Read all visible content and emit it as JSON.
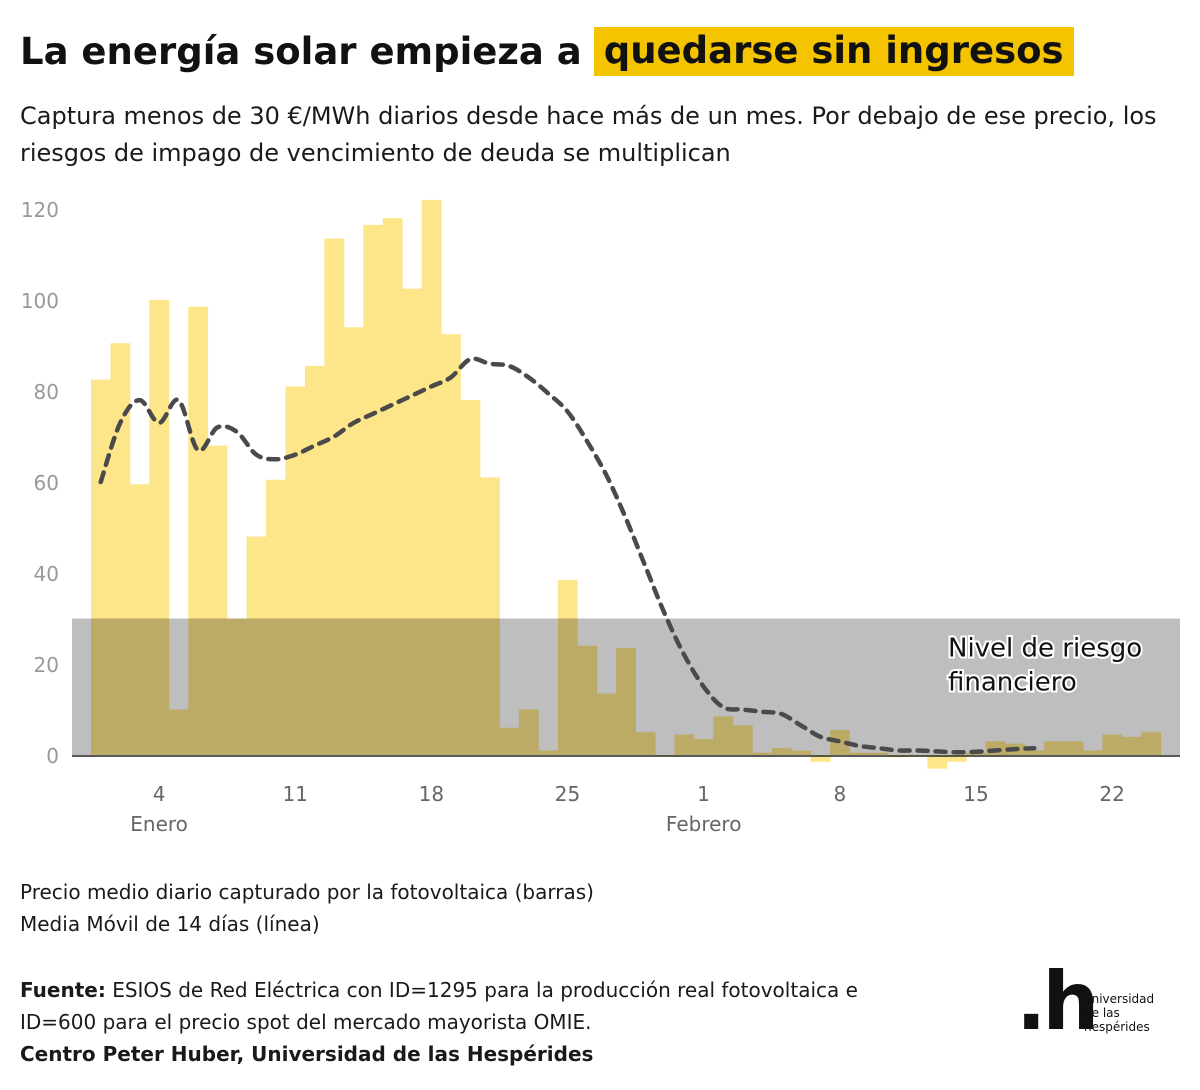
{
  "title": {
    "main": "La energía solar empieza a",
    "highlight": "quedarse sin ingresos"
  },
  "subtitle": "Captura menos de 30 €/MWh diarios desde hace más de un mes. Por debajo de ese precio, los riesgos de impago de vencimiento de deuda se multiplican",
  "legend": {
    "bars": "Precio medio diario capturado por la fotovoltaica (barras)",
    "line": "Media Móvil de 14 días (línea)"
  },
  "source": {
    "label": "Fuente:",
    "text": "ESIOS de Red Eléctrica con ID=1295 para la producción real fotovoltaica e ID=600 para el precio spot del mercado mayorista OMIE.",
    "credit": "Centro Peter Huber, Universidad de las Hespérides"
  },
  "logo": {
    "mark": ".h",
    "text_lines": [
      "universidad",
      "de las",
      "hespérides"
    ]
  },
  "colors": {
    "bars": "#fde68a",
    "band": "#b3b3b3",
    "line": "#4a4a4a",
    "highlight": "#f5c400",
    "axis_text": "#999999"
  },
  "chart_data": {
    "type": "bar",
    "x_start": "1 Enero",
    "x_tick_labels": [
      "4",
      "11",
      "18",
      "25",
      "1",
      "8",
      "15",
      "22"
    ],
    "x_tick_days": [
      4,
      11,
      18,
      25,
      32,
      39,
      46,
      53
    ],
    "x_month_labels": [
      {
        "day": 4,
        "label": "Enero"
      },
      {
        "day": 32,
        "label": "Febrero"
      }
    ],
    "ylim": [
      -3,
      125
    ],
    "y_ticks": [
      0,
      20,
      40,
      60,
      80,
      100,
      120
    ],
    "grid": false,
    "band": {
      "from": 0,
      "to": 30,
      "label_lines": [
        "Nivel de riesgo",
        "financiero"
      ]
    },
    "series": [
      {
        "kind": "bar",
        "values": [
          82.5,
          90.5,
          59.5,
          100,
          10,
          98.5,
          68,
          30,
          48,
          60.5,
          81,
          85.5,
          113.5,
          94,
          116.5,
          118,
          102.5,
          122,
          92.5,
          78,
          61,
          6,
          10,
          1,
          38.5,
          24,
          13.5,
          23.5,
          5,
          0,
          4.5,
          3.5,
          8.5,
          6.5,
          0.5,
          1.5,
          1,
          -1.5,
          5.5,
          0.5,
          0.5,
          -0.5,
          0,
          -3,
          -1.5,
          0.5,
          3,
          2.5,
          1,
          3,
          3,
          1,
          4.5,
          4,
          5
        ]
      },
      {
        "kind": "line",
        "values": [
          60,
          73,
          78,
          73,
          78,
          67,
          72,
          71,
          66,
          65,
          66,
          68,
          70,
          73,
          75,
          77,
          79,
          81,
          83,
          87,
          86,
          85.5,
          83,
          79.5,
          75.5,
          69,
          61.5,
          52,
          41.5,
          31,
          22,
          15,
          10.5,
          10,
          9.5,
          9,
          6.5,
          4,
          3,
          2,
          1.5,
          1,
          1,
          0.8,
          0.6,
          0.7,
          1,
          1.3,
          1.5
        ]
      }
    ]
  }
}
